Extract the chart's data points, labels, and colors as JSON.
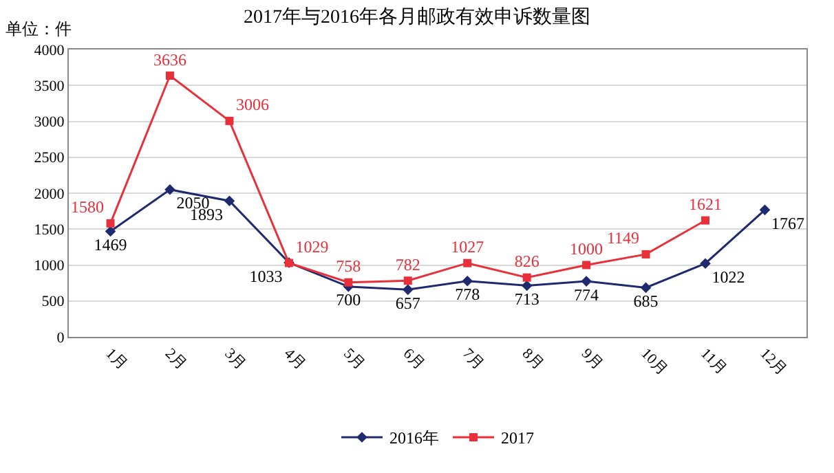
{
  "chart_data": {
    "type": "line",
    "title": "2017年与2016年各月邮政有效申诉数量图",
    "annotations": [
      "单位：件"
    ],
    "categories": [
      "1月",
      "2月",
      "3月",
      "4月",
      "5月",
      "6月",
      "7月",
      "8月",
      "9月",
      "10月",
      "11月",
      "12月"
    ],
    "series": [
      {
        "name": "2016年",
        "color": "#1f2a6e",
        "marker": "diamond",
        "values": [
          1469,
          2050,
          1893,
          1033,
          700,
          657,
          778,
          713,
          774,
          685,
          1022,
          1767
        ]
      },
      {
        "name": "2017",
        "color": "#e8303a",
        "marker": "square",
        "values": [
          1580,
          3636,
          3006,
          1029,
          758,
          782,
          1027,
          826,
          1000,
          1149,
          1621,
          null
        ]
      }
    ],
    "ylim": [
      0,
      4000
    ],
    "yticks": [
      0,
      500,
      1000,
      1500,
      2000,
      2500,
      3000,
      3500,
      4000
    ],
    "grid": "y",
    "legend": "bottom",
    "data_labels": true,
    "line_style": "solid"
  }
}
